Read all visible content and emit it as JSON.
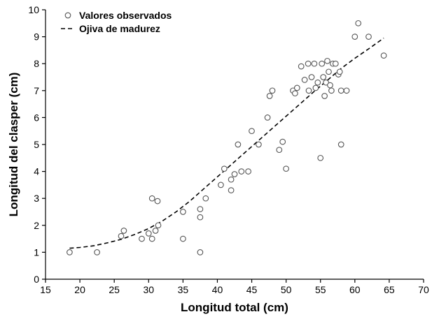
{
  "chart_data": {
    "type": "scatter",
    "title": "",
    "xlabel": "Longitud total (cm)",
    "ylabel": "Longitud del clasper (cm)",
    "xlim": [
      15,
      70
    ],
    "ylim": [
      0,
      10
    ],
    "xticks": [
      15,
      20,
      25,
      30,
      35,
      40,
      45,
      50,
      55,
      60,
      65,
      70
    ],
    "yticks": [
      0,
      1,
      2,
      3,
      4,
      5,
      6,
      7,
      8,
      9,
      10
    ],
    "grid": false,
    "legend_position": "top-left",
    "series": [
      {
        "name": "Valores observados",
        "kind": "scatter",
        "marker": "open-circle",
        "points": [
          [
            18.5,
            1.0
          ],
          [
            22.5,
            1.0
          ],
          [
            26.0,
            1.6
          ],
          [
            26.4,
            1.8
          ],
          [
            29.0,
            1.5
          ],
          [
            30.0,
            1.7
          ],
          [
            30.5,
            1.5
          ],
          [
            31.0,
            1.8
          ],
          [
            31.4,
            2.0
          ],
          [
            30.5,
            3.0
          ],
          [
            31.3,
            2.9
          ],
          [
            35.0,
            1.5
          ],
          [
            35.0,
            2.5
          ],
          [
            37.5,
            1.0
          ],
          [
            37.5,
            2.3
          ],
          [
            37.5,
            2.6
          ],
          [
            38.3,
            3.0
          ],
          [
            40.5,
            3.5
          ],
          [
            41.0,
            4.1
          ],
          [
            42.0,
            3.3
          ],
          [
            42.0,
            3.7
          ],
          [
            42.5,
            3.9
          ],
          [
            43.0,
            5.0
          ],
          [
            43.5,
            4.0
          ],
          [
            44.5,
            4.0
          ],
          [
            45.0,
            5.5
          ],
          [
            46.0,
            5.0
          ],
          [
            47.3,
            6.0
          ],
          [
            47.6,
            6.8
          ],
          [
            48.0,
            7.0
          ],
          [
            49.0,
            4.8
          ],
          [
            49.5,
            5.1
          ],
          [
            50.0,
            4.1
          ],
          [
            51.0,
            7.0
          ],
          [
            51.3,
            6.9
          ],
          [
            51.6,
            7.1
          ],
          [
            52.2,
            7.9
          ],
          [
            52.7,
            7.4
          ],
          [
            53.2,
            8.0
          ],
          [
            53.3,
            7.0
          ],
          [
            53.7,
            7.5
          ],
          [
            54.1,
            8.0
          ],
          [
            54.3,
            7.1
          ],
          [
            54.6,
            7.3
          ],
          [
            55.0,
            4.5
          ],
          [
            55.2,
            8.0
          ],
          [
            55.4,
            7.5
          ],
          [
            55.6,
            6.8
          ],
          [
            55.8,
            7.3
          ],
          [
            56.0,
            8.1
          ],
          [
            56.2,
            7.7
          ],
          [
            56.4,
            7.2
          ],
          [
            56.6,
            7.0
          ],
          [
            56.8,
            8.0
          ],
          [
            57.2,
            8.0
          ],
          [
            57.6,
            7.6
          ],
          [
            57.8,
            7.7
          ],
          [
            58.0,
            7.0
          ],
          [
            58.0,
            5.0
          ],
          [
            58.8,
            7.0
          ],
          [
            60.0,
            9.0
          ],
          [
            60.5,
            9.5
          ],
          [
            62.0,
            9.0
          ],
          [
            64.2,
            8.3
          ]
        ]
      },
      {
        "name": "Ojiva de madurez",
        "kind": "line",
        "style": "dashed",
        "points": [
          [
            18.5,
            1.15
          ],
          [
            20,
            1.18
          ],
          [
            22,
            1.24
          ],
          [
            24,
            1.35
          ],
          [
            26,
            1.48
          ],
          [
            28,
            1.66
          ],
          [
            30,
            1.88
          ],
          [
            32,
            2.16
          ],
          [
            34,
            2.5
          ],
          [
            36,
            2.9
          ],
          [
            38,
            3.35
          ],
          [
            40,
            3.8
          ],
          [
            42,
            4.25
          ],
          [
            44,
            4.7
          ],
          [
            46,
            5.15
          ],
          [
            48,
            5.6
          ],
          [
            50,
            6.05
          ],
          [
            52,
            6.5
          ],
          [
            54,
            6.95
          ],
          [
            56,
            7.38
          ],
          [
            58,
            7.82
          ],
          [
            60,
            8.2
          ],
          [
            62,
            8.55
          ],
          [
            64.2,
            8.95
          ]
        ]
      }
    ]
  }
}
